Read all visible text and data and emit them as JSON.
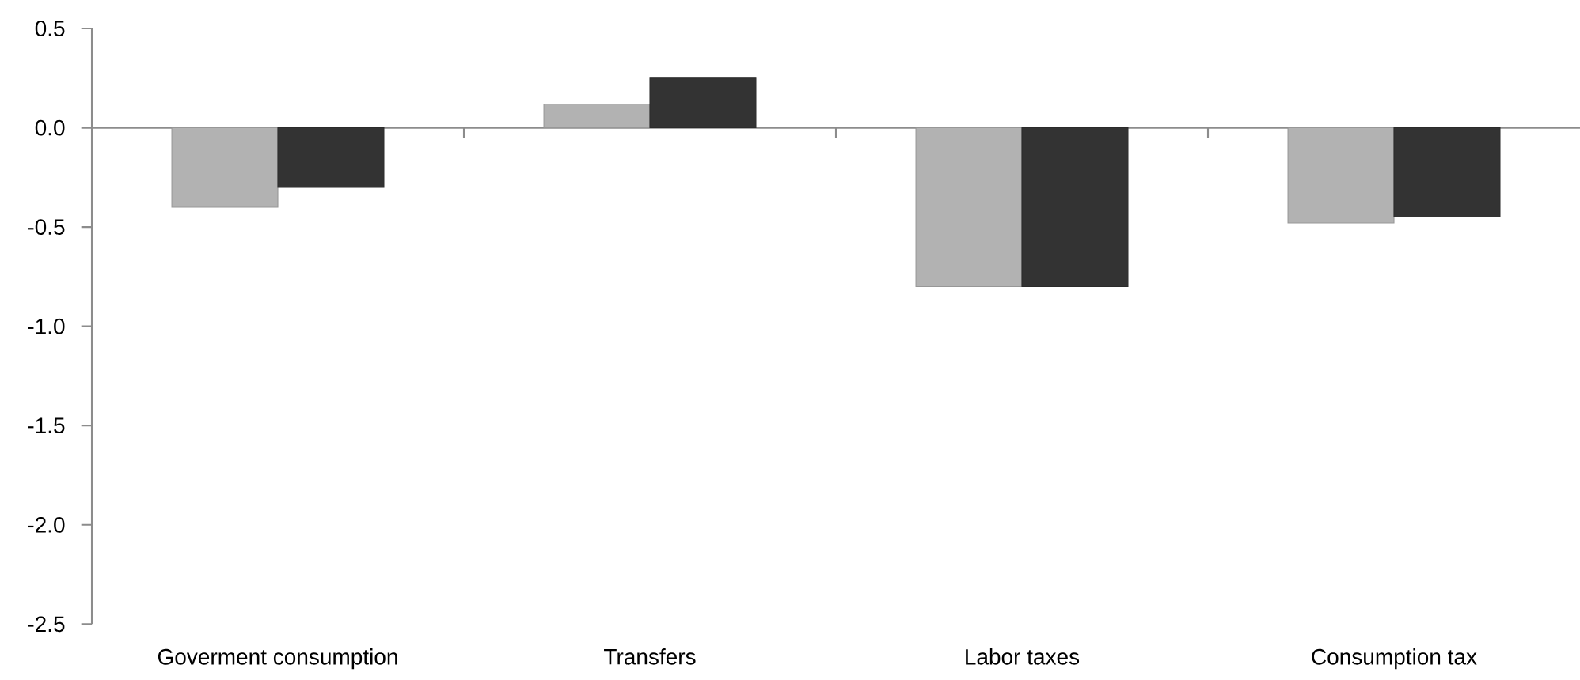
{
  "chart_data": {
    "type": "bar",
    "categories": [
      "Goverment consumption",
      "Transfers",
      "Labor taxes",
      "Consumption tax"
    ],
    "series": [
      {
        "color": "#b2b2b2",
        "values": [
          -0.4,
          0.12,
          -0.8,
          -0.48
        ]
      },
      {
        "color": "#333333",
        "values": [
          -0.3,
          0.25,
          -0.8,
          -0.45
        ]
      }
    ],
    "ylim": [
      -2.5,
      0.5
    ],
    "yticks": [
      -2.5,
      {
        "value": -2,
        "label": "-2.0"
      },
      -1.5,
      {
        "value": -1,
        "label": "-1.0"
      },
      -0.5,
      {
        "value": 0,
        "label": "0.0"
      },
      0.5
    ],
    "legend": false
  }
}
